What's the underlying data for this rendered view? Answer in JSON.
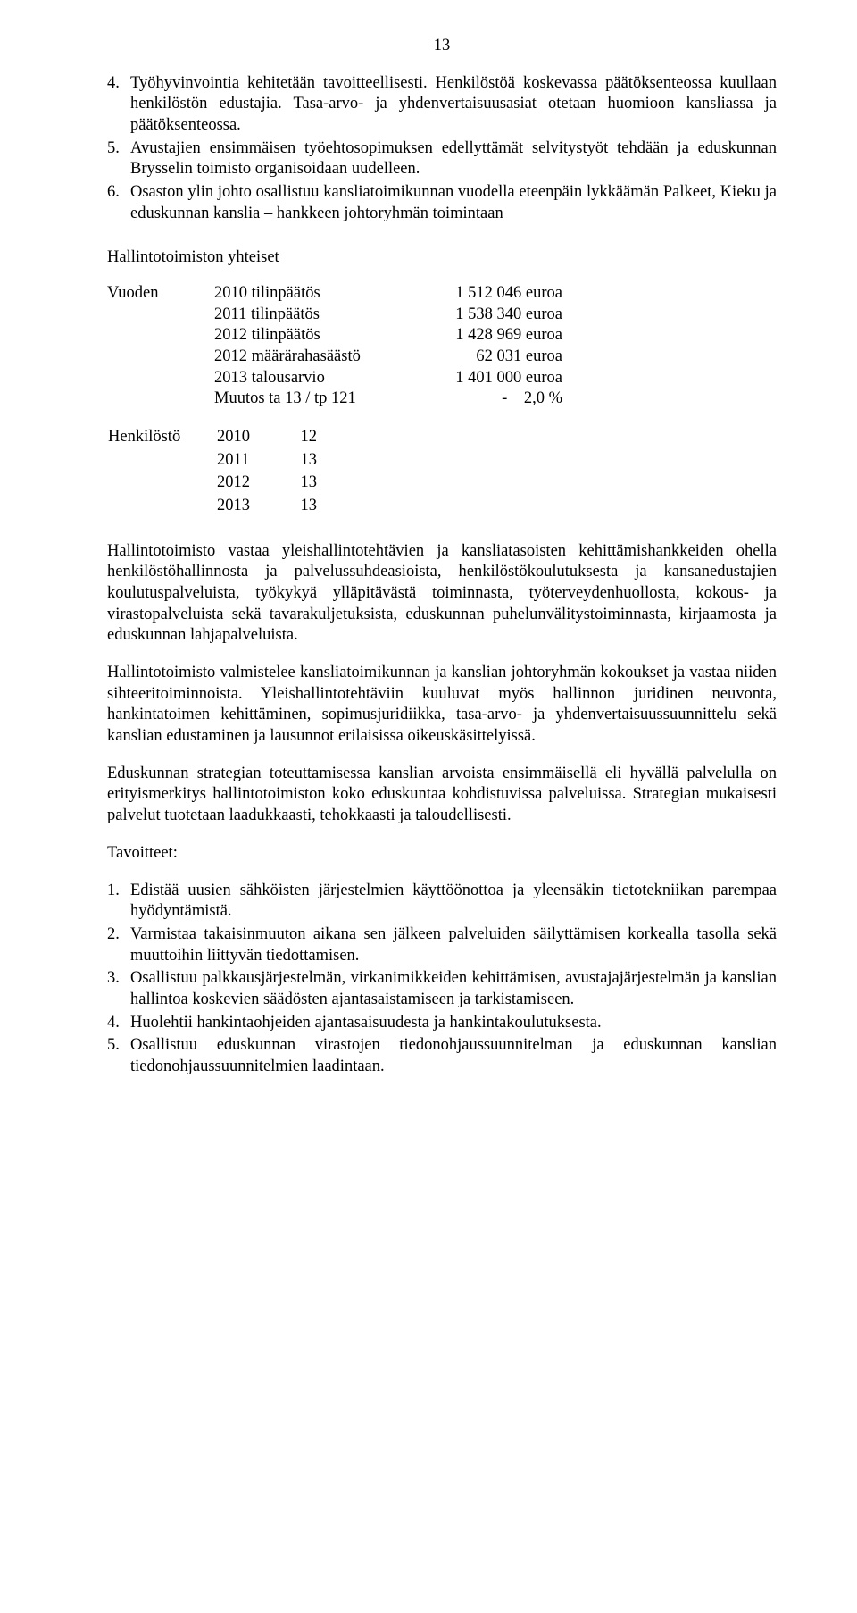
{
  "pageNumber": "13",
  "list1": [
    {
      "n": "4.",
      "t": "Työhyvinvointia kehitetään tavoitteellisesti. Henkilöstöä koskevassa päätöksenteossa kuullaan henkilöstön edustajia. Tasa-arvo- ja yhdenvertaisuusasiat otetaan huomioon kansliassa ja päätöksenteossa."
    },
    {
      "n": "5.",
      "t": "Avustajien ensimmäisen työehtosopimuksen edellyttämät selvitystyöt tehdään ja eduskunnan Brysselin toimisto organisoidaan uudelleen."
    },
    {
      "n": "6.",
      "t": "Osaston ylin johto osallistuu kansliatoimikunnan vuodella eteenpäin lykkäämän Palkeet, Kieku ja eduskunnan kanslia – hankkeen johtoryhmän toimintaan"
    }
  ],
  "sectionTitle": "Hallintotoimiston yhteiset",
  "budget": {
    "leadLabel": "Vuoden",
    "rows": [
      {
        "label": "2010 tilinpäätös",
        "value": "1 512 046 euroa"
      },
      {
        "label": "2011 tilinpäätös",
        "value": "1 538 340 euroa"
      },
      {
        "label": "2012 tilinpäätös",
        "value": "1 428 969 euroa"
      },
      {
        "label": "2012 määrärahasäästö",
        "value": "62 031 euroa"
      },
      {
        "label": "2013 talousarvio",
        "value": "1 401 000 euroa"
      },
      {
        "label": "Muutos ta 13 / tp 121",
        "value": "-    2,0 %"
      }
    ]
  },
  "staff": {
    "leadLabel": "Henkilöstö",
    "rows": [
      {
        "year": "2010",
        "count": "12"
      },
      {
        "year": "2011",
        "count": "13"
      },
      {
        "year": "2012",
        "count": "13"
      },
      {
        "year": "2013",
        "count": "13"
      }
    ]
  },
  "para1": "Hallintotoimisto vastaa yleishallintotehtävien ja kansliatasoisten kehittämishankkeiden ohella henkilöstöhallinnosta ja palvelussuhdeasioista, henkilöstökoulutuksesta ja kansanedustajien koulutuspalveluista, työkykyä ylläpitävästä toiminnasta, työterveydenhuollosta, kokous- ja virastopalveluista sekä tavarakuljetuksista, eduskunnan puhelunvälitystoiminnasta, kirjaamosta ja eduskunnan lahjapalveluista.",
  "para2": "Hallintotoimisto valmistelee kansliatoimikunnan ja kanslian johtoryhmän kokoukset ja vastaa niiden sihteeritoiminnoista. Yleishallintotehtäviin kuuluvat myös hallinnon juridinen neuvonta, hankintatoimen kehittäminen, sopimusjuridiikka, tasa-arvo- ja yhdenvertaisuussuunnittelu sekä kanslian edustaminen ja lausunnot erilaisissa oikeuskäsittelyissä.",
  "para3": "Eduskunnan strategian toteuttamisessa kanslian arvoista ensimmäisellä eli hyvällä palvelulla on erityismerkitys hallintotoimiston koko eduskuntaa kohdistuvissa palveluissa. Strategian mukaisesti palvelut tuotetaan laadukkaasti, tehokkaasti ja taloudellisesti.",
  "goalsLabel": "Tavoitteet:",
  "list2": [
    {
      "n": "1.",
      "t": "Edistää uusien sähköisten järjestelmien käyttöönottoa ja yleensäkin tietotekniikan parempaa hyödyntämistä."
    },
    {
      "n": "2.",
      "t": "Varmistaa takaisinmuuton aikana sen jälkeen palveluiden säilyttämisen korkealla tasolla sekä muuttoihin liittyvän tiedottamisen."
    },
    {
      "n": "3.",
      "t": "Osallistuu palkkausjärjestelmän, virkanimikkeiden kehittämisen, avustajajärjestelmän ja kanslian hallintoa koskevien säädösten ajantasaistamiseen ja tarkistamiseen."
    },
    {
      "n": "4.",
      "t": "Huolehtii hankintaohjeiden ajantasaisuudesta ja hankintakoulutuksesta."
    },
    {
      "n": "5.",
      "t": "Osallistuu eduskunnan virastojen tiedonohjaussuunnitelman ja eduskunnan kanslian tiedonohjaussuunnitelmien laadintaan."
    }
  ]
}
